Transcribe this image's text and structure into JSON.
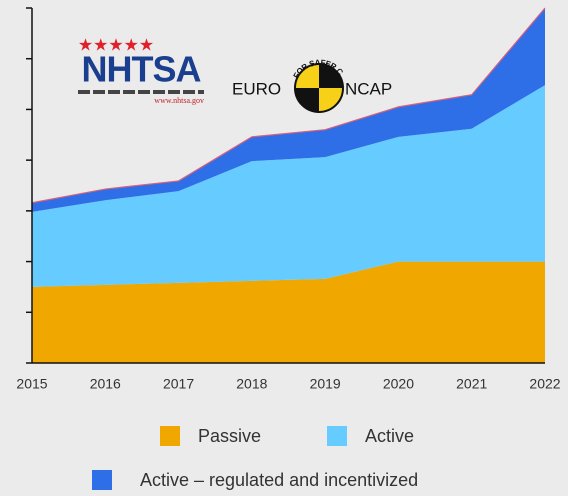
{
  "chart_data": {
    "type": "stacked_area",
    "categories": [
      "2015",
      "2016",
      "2017",
      "2018",
      "2019",
      "2020",
      "2021",
      "2022"
    ],
    "series": [
      {
        "name": "Passive",
        "color": "#f0a800",
        "values": [
          1.5,
          1.54,
          1.58,
          1.62,
          1.66,
          2.0,
          2.0,
          2.0
        ]
      },
      {
        "name": "Active",
        "color": "#66ccff",
        "values": [
          1.48,
          1.67,
          1.81,
          2.36,
          2.4,
          2.46,
          2.62,
          3.48
        ]
      },
      {
        "name": "Active – regulated and incentivized",
        "color": "#2e6fe8",
        "values": [
          0.18,
          0.22,
          0.2,
          0.48,
          0.54,
          0.59,
          0.67,
          1.52
        ]
      }
    ],
    "ylim": [
      0,
      7
    ],
    "yticks": [
      0,
      1,
      2,
      3,
      4,
      5,
      6,
      7
    ],
    "logos": {
      "nhtsa": {
        "stars": "★★★★★",
        "name": "NHTSA",
        "url": "www.nhtsa.gov"
      },
      "euroncap": {
        "left": "EURO",
        "right": "NCAP",
        "tagline": "FOR SAFER CARS"
      }
    }
  }
}
